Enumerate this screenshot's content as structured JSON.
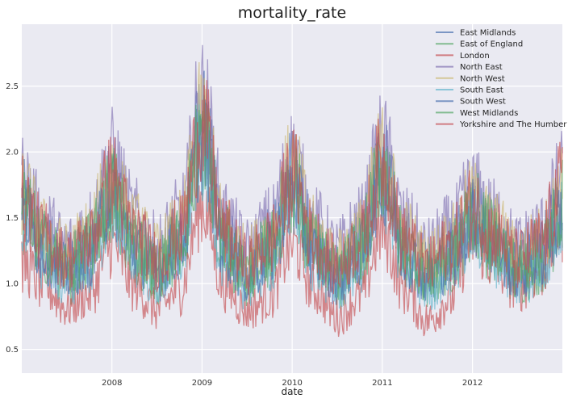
{
  "chart_data": {
    "type": "line",
    "title": "mortality_rate",
    "xlabel": "date",
    "ylabel": "",
    "x_range": [
      "2007-01-01",
      "2012-12-31"
    ],
    "x_ticks": [
      "2008",
      "2009",
      "2010",
      "2011",
      "2012"
    ],
    "ylim": [
      0.32,
      2.97
    ],
    "y_ticks": [
      "0.5",
      "1.0",
      "1.5",
      "2.0",
      "2.5"
    ],
    "grid": true,
    "legend_position": "top-right",
    "series": [
      {
        "name": "East Midlands",
        "color": "#4c72b0",
        "values": [
          [
            2007.0,
            1.62
          ],
          [
            2007.25,
            1.3
          ],
          [
            2007.5,
            1.15
          ],
          [
            2007.75,
            1.3
          ],
          [
            2008.0,
            1.75
          ],
          [
            2008.25,
            1.35
          ],
          [
            2008.5,
            1.15
          ],
          [
            2008.75,
            1.35
          ],
          [
            2009.0,
            2.2
          ],
          [
            2009.25,
            1.35
          ],
          [
            2009.5,
            1.12
          ],
          [
            2009.75,
            1.3
          ],
          [
            2010.0,
            1.8
          ],
          [
            2010.25,
            1.3
          ],
          [
            2010.5,
            1.1
          ],
          [
            2010.75,
            1.3
          ],
          [
            2011.0,
            1.9
          ],
          [
            2011.25,
            1.3
          ],
          [
            2011.5,
            1.1
          ],
          [
            2011.75,
            1.25
          ],
          [
            2012.0,
            1.55
          ],
          [
            2012.25,
            1.35
          ],
          [
            2012.5,
            1.15
          ],
          [
            2012.75,
            1.25
          ],
          [
            2013.0,
            1.6
          ]
        ]
      },
      {
        "name": "East of England",
        "color": "#55a868",
        "values": [
          [
            2007.0,
            1.5
          ],
          [
            2007.25,
            1.22
          ],
          [
            2007.5,
            1.05
          ],
          [
            2007.75,
            1.2
          ],
          [
            2008.0,
            1.65
          ],
          [
            2008.25,
            1.25
          ],
          [
            2008.5,
            1.05
          ],
          [
            2008.75,
            1.25
          ],
          [
            2009.0,
            2.05
          ],
          [
            2009.25,
            1.25
          ],
          [
            2009.5,
            1.02
          ],
          [
            2009.75,
            1.2
          ],
          [
            2010.0,
            1.7
          ],
          [
            2010.25,
            1.2
          ],
          [
            2010.5,
            1.0
          ],
          [
            2010.75,
            1.2
          ],
          [
            2011.0,
            1.8
          ],
          [
            2011.25,
            1.2
          ],
          [
            2011.5,
            1.0
          ],
          [
            2011.75,
            1.15
          ],
          [
            2012.0,
            1.45
          ],
          [
            2012.25,
            1.25
          ],
          [
            2012.5,
            1.05
          ],
          [
            2012.75,
            1.15
          ],
          [
            2013.0,
            1.5
          ]
        ]
      },
      {
        "name": "London",
        "color": "#c44e52",
        "values": [
          [
            2007.0,
            1.15
          ],
          [
            2007.25,
            0.98
          ],
          [
            2007.5,
            0.82
          ],
          [
            2007.75,
            0.92
          ],
          [
            2008.0,
            1.3
          ],
          [
            2008.25,
            0.98
          ],
          [
            2008.5,
            0.8
          ],
          [
            2008.75,
            0.95
          ],
          [
            2009.0,
            1.6
          ],
          [
            2009.25,
            0.98
          ],
          [
            2009.5,
            0.8
          ],
          [
            2009.75,
            0.9
          ],
          [
            2010.0,
            1.3
          ],
          [
            2010.25,
            0.95
          ],
          [
            2010.5,
            0.75
          ],
          [
            2010.75,
            0.9
          ],
          [
            2011.0,
            1.4
          ],
          [
            2011.25,
            0.95
          ],
          [
            2011.5,
            0.72
          ],
          [
            2011.75,
            0.88
          ],
          [
            2012.0,
            1.35
          ],
          [
            2012.25,
            1.15
          ],
          [
            2012.5,
            0.98
          ],
          [
            2012.75,
            1.1
          ],
          [
            2013.0,
            1.45
          ]
        ]
      },
      {
        "name": "North East",
        "color": "#8172b2",
        "values": [
          [
            2007.0,
            1.8
          ],
          [
            2007.25,
            1.45
          ],
          [
            2007.5,
            1.28
          ],
          [
            2007.75,
            1.45
          ],
          [
            2008.0,
            1.95
          ],
          [
            2008.25,
            1.5
          ],
          [
            2008.5,
            1.28
          ],
          [
            2008.75,
            1.5
          ],
          [
            2009.0,
            2.4
          ],
          [
            2009.25,
            1.5
          ],
          [
            2009.5,
            1.25
          ],
          [
            2009.75,
            1.45
          ],
          [
            2010.0,
            1.95
          ],
          [
            2010.25,
            1.45
          ],
          [
            2010.5,
            1.25
          ],
          [
            2010.75,
            1.45
          ],
          [
            2011.0,
            2.05
          ],
          [
            2011.25,
            1.45
          ],
          [
            2011.5,
            1.25
          ],
          [
            2011.75,
            1.4
          ],
          [
            2012.0,
            1.7
          ],
          [
            2012.25,
            1.5
          ],
          [
            2012.5,
            1.28
          ],
          [
            2012.75,
            1.4
          ],
          [
            2013.0,
            1.8
          ]
        ]
      },
      {
        "name": "North West",
        "color": "#ccb974",
        "values": [
          [
            2007.0,
            1.7
          ],
          [
            2007.25,
            1.38
          ],
          [
            2007.5,
            1.22
          ],
          [
            2007.75,
            1.38
          ],
          [
            2008.0,
            1.85
          ],
          [
            2008.25,
            1.42
          ],
          [
            2008.5,
            1.22
          ],
          [
            2008.75,
            1.42
          ],
          [
            2009.0,
            2.25
          ],
          [
            2009.25,
            1.42
          ],
          [
            2009.5,
            1.2
          ],
          [
            2009.75,
            1.38
          ],
          [
            2010.0,
            1.88
          ],
          [
            2010.25,
            1.38
          ],
          [
            2010.5,
            1.18
          ],
          [
            2010.75,
            1.38
          ],
          [
            2011.0,
            1.98
          ],
          [
            2011.25,
            1.38
          ],
          [
            2011.5,
            1.18
          ],
          [
            2011.75,
            1.32
          ],
          [
            2012.0,
            1.62
          ],
          [
            2012.25,
            1.42
          ],
          [
            2012.5,
            1.22
          ],
          [
            2012.75,
            1.32
          ],
          [
            2013.0,
            1.7
          ]
        ]
      },
      {
        "name": "South East",
        "color": "#64b5cd",
        "values": [
          [
            2007.0,
            1.45
          ],
          [
            2007.25,
            1.18
          ],
          [
            2007.5,
            1.02
          ],
          [
            2007.75,
            1.15
          ],
          [
            2008.0,
            1.6
          ],
          [
            2008.25,
            1.2
          ],
          [
            2008.5,
            1.02
          ],
          [
            2008.75,
            1.2
          ],
          [
            2009.0,
            2.0
          ],
          [
            2009.25,
            1.2
          ],
          [
            2009.5,
            1.0
          ],
          [
            2009.75,
            1.15
          ],
          [
            2010.0,
            1.65
          ],
          [
            2010.25,
            1.15
          ],
          [
            2010.5,
            0.98
          ],
          [
            2010.75,
            1.15
          ],
          [
            2011.0,
            1.75
          ],
          [
            2011.25,
            1.15
          ],
          [
            2011.5,
            0.98
          ],
          [
            2011.75,
            1.1
          ],
          [
            2012.0,
            1.42
          ],
          [
            2012.25,
            1.22
          ],
          [
            2012.5,
            1.02
          ],
          [
            2012.75,
            1.12
          ],
          [
            2013.0,
            1.48
          ]
        ]
      },
      {
        "name": "South West",
        "color": "#4c72b0",
        "values": [
          [
            2007.0,
            1.55
          ],
          [
            2007.25,
            1.25
          ],
          [
            2007.5,
            1.08
          ],
          [
            2007.75,
            1.22
          ],
          [
            2008.0,
            1.68
          ],
          [
            2008.25,
            1.28
          ],
          [
            2008.5,
            1.08
          ],
          [
            2008.75,
            1.28
          ],
          [
            2009.0,
            2.1
          ],
          [
            2009.25,
            1.28
          ],
          [
            2009.5,
            1.05
          ],
          [
            2009.75,
            1.22
          ],
          [
            2010.0,
            1.72
          ],
          [
            2010.25,
            1.22
          ],
          [
            2010.5,
            1.05
          ],
          [
            2010.75,
            1.22
          ],
          [
            2011.0,
            1.82
          ],
          [
            2011.25,
            1.22
          ],
          [
            2011.5,
            1.05
          ],
          [
            2011.75,
            1.18
          ],
          [
            2012.0,
            1.5
          ],
          [
            2012.25,
            1.3
          ],
          [
            2012.5,
            1.08
          ],
          [
            2012.75,
            1.2
          ],
          [
            2013.0,
            1.55
          ]
        ]
      },
      {
        "name": "West Midlands",
        "color": "#55a868",
        "values": [
          [
            2007.0,
            1.6
          ],
          [
            2007.25,
            1.3
          ],
          [
            2007.5,
            1.12
          ],
          [
            2007.75,
            1.28
          ],
          [
            2008.0,
            1.72
          ],
          [
            2008.25,
            1.32
          ],
          [
            2008.5,
            1.12
          ],
          [
            2008.75,
            1.32
          ],
          [
            2009.0,
            2.15
          ],
          [
            2009.25,
            1.32
          ],
          [
            2009.5,
            1.1
          ],
          [
            2009.75,
            1.28
          ],
          [
            2010.0,
            1.78
          ],
          [
            2010.25,
            1.28
          ],
          [
            2010.5,
            1.08
          ],
          [
            2010.75,
            1.28
          ],
          [
            2011.0,
            1.88
          ],
          [
            2011.25,
            1.28
          ],
          [
            2011.5,
            1.08
          ],
          [
            2011.75,
            1.22
          ],
          [
            2012.0,
            1.55
          ],
          [
            2012.25,
            1.35
          ],
          [
            2012.5,
            1.12
          ],
          [
            2012.75,
            1.25
          ],
          [
            2013.0,
            1.62
          ]
        ]
      },
      {
        "name": "Yorkshire and The Humber",
        "color": "#c44e52",
        "values": [
          [
            2007.0,
            1.65
          ],
          [
            2007.25,
            1.35
          ],
          [
            2007.5,
            1.18
          ],
          [
            2007.75,
            1.32
          ],
          [
            2008.0,
            1.8
          ],
          [
            2008.25,
            1.38
          ],
          [
            2008.5,
            1.18
          ],
          [
            2008.75,
            1.38
          ],
          [
            2009.0,
            2.2
          ],
          [
            2009.25,
            1.38
          ],
          [
            2009.5,
            1.15
          ],
          [
            2009.75,
            1.32
          ],
          [
            2010.0,
            1.82
          ],
          [
            2010.25,
            1.32
          ],
          [
            2010.5,
            1.12
          ],
          [
            2010.75,
            1.32
          ],
          [
            2011.0,
            1.92
          ],
          [
            2011.25,
            1.32
          ],
          [
            2011.5,
            1.12
          ],
          [
            2011.75,
            1.28
          ],
          [
            2012.0,
            1.58
          ],
          [
            2012.25,
            1.38
          ],
          [
            2012.5,
            1.18
          ],
          [
            2012.75,
            1.3
          ],
          [
            2013.0,
            1.75
          ]
        ]
      }
    ]
  }
}
